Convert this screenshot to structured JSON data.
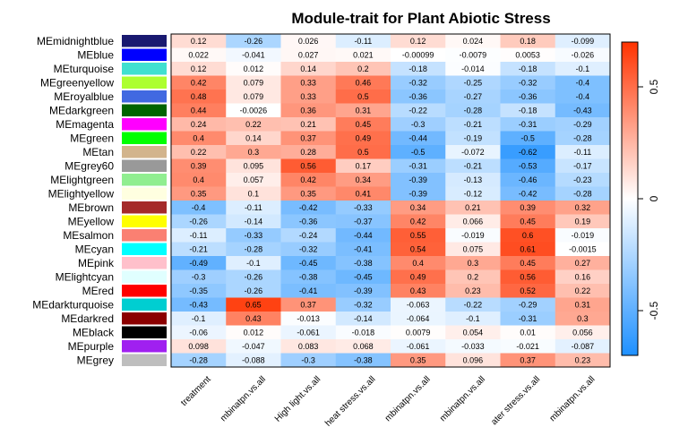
{
  "chart_data": {
    "type": "heatmap",
    "title": "Module-trait for Plant Abiotic Stress",
    "rows": [
      {
        "name": "MEmidnightblue",
        "color": "#191970"
      },
      {
        "name": "MEblue",
        "color": "#0000FF"
      },
      {
        "name": "MEturquoise",
        "color": "#40E0D0"
      },
      {
        "name": "MEgreenyellow",
        "color": "#ADFF2F"
      },
      {
        "name": "MEroyalblue",
        "color": "#4169E1"
      },
      {
        "name": "MEdarkgreen",
        "color": "#006400"
      },
      {
        "name": "MEmagenta",
        "color": "#FF00FF"
      },
      {
        "name": "MEgreen",
        "color": "#00FF00"
      },
      {
        "name": "MEtan",
        "color": "#D2B48C"
      },
      {
        "name": "MEgrey60",
        "color": "#999999"
      },
      {
        "name": "MElightgreen",
        "color": "#90EE90"
      },
      {
        "name": "MElightyellow",
        "color": "#FFFFE0"
      },
      {
        "name": "MEbrown",
        "color": "#A52A2A"
      },
      {
        "name": "MEyellow",
        "color": "#FFFF00"
      },
      {
        "name": "MEsalmon",
        "color": "#FA8072"
      },
      {
        "name": "MEcyan",
        "color": "#00FFFF"
      },
      {
        "name": "MEpink",
        "color": "#FFC0CB"
      },
      {
        "name": "MElightcyan",
        "color": "#E0FFFF"
      },
      {
        "name": "MEred",
        "color": "#FF0000"
      },
      {
        "name": "MEdarkturquoise",
        "color": "#00CED1"
      },
      {
        "name": "MEdarkred",
        "color": "#8B0000"
      },
      {
        "name": "MEblack",
        "color": "#000000"
      },
      {
        "name": "MEpurple",
        "color": "#A020F0"
      },
      {
        "name": "MEgrey",
        "color": "#BEBEBE"
      }
    ],
    "columns": [
      "treatment",
      "mbinatpn.vs.all",
      "High light.vs.all",
      "heat stress.vs.all",
      "mbinatpn.vs.all",
      "mbinatpn.vs.all",
      "ater stress.vs.all",
      "mbinatpn.vs.all"
    ],
    "values": [
      [
        0.12,
        -0.26,
        0.026,
        -0.11,
        0.12,
        0.024,
        0.18,
        -0.099
      ],
      [
        0.022,
        -0.041,
        0.027,
        0.021,
        -0.00099,
        -0.0079,
        0.0053,
        -0.026
      ],
      [
        0.12,
        0.012,
        0.14,
        0.2,
        -0.18,
        -0.014,
        -0.18,
        -0.1
      ],
      [
        0.42,
        0.079,
        0.33,
        0.46,
        -0.32,
        -0.25,
        -0.32,
        -0.4
      ],
      [
        0.48,
        0.079,
        0.33,
        0.5,
        -0.36,
        -0.27,
        -0.36,
        -0.4
      ],
      [
        0.44,
        -0.0026,
        0.36,
        0.31,
        -0.22,
        -0.28,
        -0.18,
        -0.43
      ],
      [
        0.24,
        0.22,
        0.21,
        0.45,
        -0.3,
        -0.21,
        -0.31,
        -0.29
      ],
      [
        0.4,
        0.14,
        0.37,
        0.49,
        -0.44,
        -0.19,
        -0.5,
        -0.28
      ],
      [
        0.22,
        0.3,
        0.28,
        0.5,
        -0.5,
        -0.072,
        -0.62,
        -0.11
      ],
      [
        0.39,
        0.095,
        0.56,
        0.17,
        -0.31,
        -0.21,
        -0.53,
        -0.17
      ],
      [
        0.4,
        0.057,
        0.42,
        0.34,
        -0.39,
        -0.13,
        -0.46,
        -0.23
      ],
      [
        0.35,
        0.1,
        0.35,
        0.41,
        -0.39,
        -0.12,
        -0.42,
        -0.28
      ],
      [
        -0.4,
        -0.11,
        -0.42,
        -0.33,
        0.34,
        0.21,
        0.39,
        0.32
      ],
      [
        -0.26,
        -0.14,
        -0.36,
        -0.37,
        0.42,
        0.066,
        0.45,
        0.19
      ],
      [
        -0.11,
        -0.33,
        -0.24,
        -0.44,
        0.55,
        -0.019,
        0.6,
        -0.019
      ],
      [
        -0.21,
        -0.28,
        -0.32,
        -0.41,
        0.54,
        0.075,
        0.61,
        -0.0015
      ],
      [
        -0.49,
        -0.1,
        -0.45,
        -0.38,
        0.4,
        0.3,
        0.45,
        0.27
      ],
      [
        -0.3,
        -0.26,
        -0.38,
        -0.45,
        0.49,
        0.2,
        0.56,
        0.16
      ],
      [
        -0.35,
        -0.26,
        -0.41,
        -0.39,
        0.43,
        0.23,
        0.52,
        0.22
      ],
      [
        -0.43,
        0.65,
        0.37,
        -0.32,
        -0.063,
        -0.22,
        -0.29,
        0.31
      ],
      [
        -0.1,
        0.43,
        -0.013,
        -0.14,
        -0.064,
        -0.1,
        -0.31,
        0.3
      ],
      [
        -0.06,
        0.012,
        -0.061,
        -0.018,
        0.0079,
        0.054,
        0.01,
        0.056
      ],
      [
        0.098,
        -0.047,
        0.083,
        0.068,
        -0.061,
        -0.033,
        -0.021,
        -0.087
      ],
      [
        -0.28,
        -0.088,
        -0.3,
        -0.38,
        0.35,
        0.096,
        0.37,
        0.23
      ]
    ],
    "color_scale": {
      "range": [
        -0.7,
        0.7
      ],
      "low_color": "#1E90FF",
      "mid_color": "#FFFFFF",
      "high_color": "#FF3300",
      "ticks": [
        -0.5,
        0,
        0.5
      ],
      "tick_labels": [
        "-0.5",
        "0",
        "0.5"
      ]
    }
  }
}
